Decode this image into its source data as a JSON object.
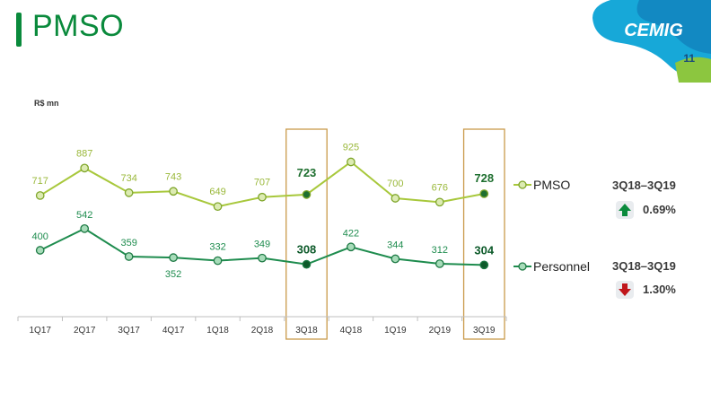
{
  "page": {
    "title": "PMSO",
    "number": "11",
    "logo_text": "CEMIG"
  },
  "colors": {
    "accent_green": "#0a8a3c",
    "pmso_line": "#a8c83c",
    "personnel_line": "#1e8c4e",
    "box": "#c99a4a",
    "up": "#0a8a3c",
    "down": "#c0161b"
  },
  "chart_data": {
    "type": "line",
    "unit_label": "R$ mn",
    "categories": [
      "1Q17",
      "2Q17",
      "3Q17",
      "4Q17",
      "1Q18",
      "2Q18",
      "3Q18",
      "4Q18",
      "1Q19",
      "2Q19",
      "3Q19"
    ],
    "series": [
      {
        "name": "PMSO",
        "values": [
          717,
          887,
          734,
          743,
          649,
          707,
          723,
          925,
          700,
          676,
          728
        ]
      },
      {
        "name": "Personnel",
        "values": [
          400,
          542,
          359,
          352,
          332,
          349,
          308,
          422,
          344,
          312,
          304
        ]
      }
    ],
    "highlighted": [
      "3Q18",
      "3Q19"
    ],
    "grid": false,
    "legend": "right"
  },
  "comparisons": [
    {
      "label": "3Q18–3Q19",
      "change": "0.69%",
      "direction": "up",
      "icon": "arrow-up-icon"
    },
    {
      "label": "3Q18–3Q19",
      "change": "1.30%",
      "direction": "down",
      "icon": "arrow-down-icon"
    }
  ]
}
